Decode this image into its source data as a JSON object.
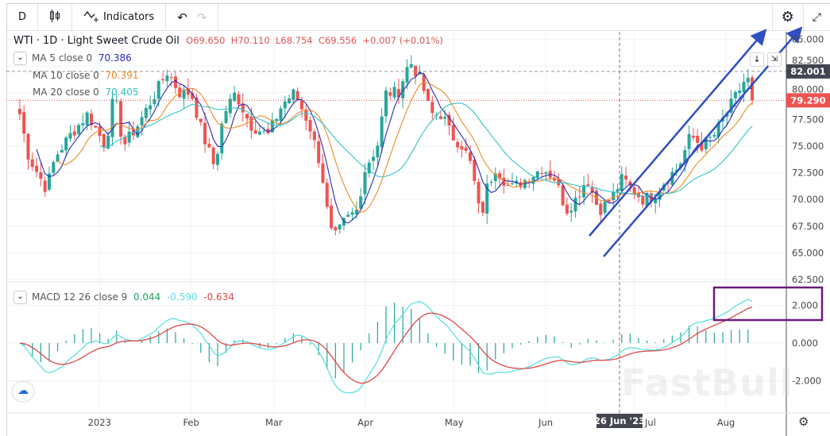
{
  "toolbar": {
    "interval": "D",
    "indicators_label": "Indicators",
    "icons": [
      "candles-icon",
      "indicators-icon",
      "undo-icon",
      "redo-icon",
      "gear-icon",
      "fullscreen-icon"
    ]
  },
  "symbol": {
    "title": "WTI · 1D · Light Sweet Crude Oil",
    "open": "O69.650",
    "high": "H70.110",
    "low": "L68.754",
    "close": "C69.556",
    "change": "+0.007 (+0.01%)"
  },
  "indicators": [
    {
      "label": "MA 5 close 0",
      "value": "70.386",
      "color": "#2b2bb5"
    },
    {
      "label": "MA 10 close 0",
      "value": "70.391",
      "color": "#f08a24"
    },
    {
      "label": "MA 20 close 0",
      "value": "70.405",
      "color": "#35c2c8"
    }
  ],
  "macd": {
    "label": "MACD 12 26 close 9",
    "hist": "0.044",
    "macd": "-0.590",
    "signal": "-0.634",
    "colors": {
      "hist": "#26a269",
      "macd": "#5ee0e0",
      "signal": "#e04848"
    }
  },
  "price_axis": {
    "ticks": [
      "85.000",
      "82.500",
      "80.000",
      "77.500",
      "75.000",
      "72.500",
      "70.000",
      "67.500",
      "65.000",
      "62.500"
    ],
    "last_high_label": "82.001",
    "current_label": "79.290"
  },
  "macd_axis": {
    "ticks": [
      "2.000",
      "0.000",
      "-2.000"
    ]
  },
  "time_axis": {
    "ticks": [
      "2023",
      "Feb",
      "Mar",
      "Apr",
      "May",
      "Jun",
      "Jul",
      "Aug"
    ],
    "crosshair_label": "26 Jun '23"
  },
  "watermark": "FastBull",
  "colors": {
    "up": "#26a69a",
    "down": "#ef5350",
    "annotation": "#2f4fc4",
    "highlight_box": "#6a1b7a"
  },
  "chart_data": {
    "type": "candlestick",
    "price_range": [
      62.5,
      85
    ],
    "macd_range": [
      -3,
      3
    ],
    "approx_closes": [
      [
        "2022-12-05",
        78
      ],
      [
        "2022-12-08",
        74
      ],
      [
        "2022-12-14",
        71
      ],
      [
        "2022-12-17",
        74
      ],
      [
        "2022-12-22",
        76
      ],
      [
        "2022-12-28",
        78
      ],
      [
        "2023-01-03",
        75
      ],
      [
        "2023-01-06",
        80
      ],
      [
        "2023-01-09",
        75
      ],
      [
        "2023-01-14",
        77
      ],
      [
        "2023-01-20",
        80
      ],
      [
        "2023-01-24",
        82
      ],
      [
        "2023-01-28",
        80
      ],
      [
        "2023-02-01",
        80
      ],
      [
        "2023-02-05",
        76
      ],
      [
        "2023-02-09",
        73
      ],
      [
        "2023-02-12",
        78
      ],
      [
        "2023-02-16",
        80
      ],
      [
        "2023-02-21",
        77
      ],
      [
        "2023-02-27",
        76
      ],
      [
        "2023-03-04",
        79
      ],
      [
        "2023-03-08",
        80
      ],
      [
        "2023-03-13",
        77
      ],
      [
        "2023-03-17",
        73
      ],
      [
        "2023-03-20",
        67
      ],
      [
        "2023-03-22",
        66.5
      ],
      [
        "2023-03-25",
        68
      ],
      [
        "2023-03-29",
        69
      ],
      [
        "2023-04-01",
        73
      ],
      [
        "2023-04-05",
        75
      ],
      [
        "2023-04-08",
        80
      ],
      [
        "2023-04-12",
        80
      ],
      [
        "2023-04-16",
        83
      ],
      [
        "2023-04-20",
        81
      ],
      [
        "2023-04-23",
        78
      ],
      [
        "2023-04-27",
        78
      ],
      [
        "2023-04-30",
        76
      ],
      [
        "2023-05-04",
        75
      ],
      [
        "2023-05-07",
        73
      ],
      [
        "2023-05-10",
        68
      ],
      [
        "2023-05-12",
        71
      ],
      [
        "2023-05-15",
        73
      ],
      [
        "2023-05-20",
        71
      ],
      [
        "2023-05-26",
        72
      ],
      [
        "2023-05-31",
        73
      ],
      [
        "2023-06-04",
        72
      ],
      [
        "2023-06-08",
        69
      ],
      [
        "2023-06-11",
        70
      ],
      [
        "2023-06-15",
        72
      ],
      [
        "2023-06-19",
        69
      ],
      [
        "2023-06-23",
        70
      ],
      [
        "2023-06-27",
        72
      ],
      [
        "2023-06-30",
        71
      ],
      [
        "2023-07-04",
        70
      ],
      [
        "2023-07-08",
        70.5
      ],
      [
        "2023-07-12",
        72
      ],
      [
        "2023-07-16",
        73
      ],
      [
        "2023-07-20",
        76
      ],
      [
        "2023-07-24",
        75
      ],
      [
        "2023-07-28",
        76
      ],
      [
        "2023-08-01",
        78
      ],
      [
        "2023-08-05",
        80
      ],
      [
        "2023-08-08",
        81.5
      ],
      [
        "2023-08-11",
        79.29
      ]
    ]
  }
}
